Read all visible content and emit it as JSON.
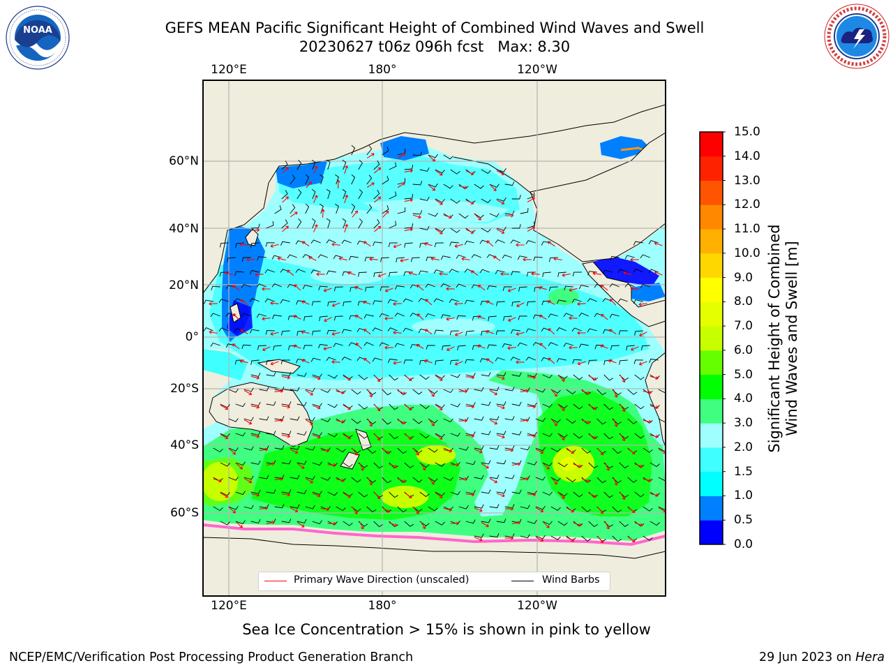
{
  "header": {
    "title_line1": "GEFS MEAN Pacific Significant Height of Combined Wind Waves and Swell",
    "title_line2": "20230627 t06z 096h fcst   Max: 8.30"
  },
  "logos": {
    "left": {
      "text": "NOAA",
      "ring_text": "NATIONAL OCEANIC AND ATMOSPHERIC ADMINISTRATION · U.S. DEPARTMENT OF COMMERCE"
    },
    "right": {
      "ring_text": "NATIONAL WEATHER SERVICE"
    }
  },
  "map": {
    "top_lon_labels": [
      "120°E",
      "180°",
      "120°W"
    ],
    "bottom_lon_labels": [
      "120°E",
      "180°",
      "120°W"
    ],
    "lat_labels": [
      "60°N",
      "40°N",
      "20°N",
      "0°",
      "20°S",
      "40°S",
      "60°S"
    ],
    "colors": {
      "land": "#efeddd",
      "coast": "#000000",
      "grid": "#b4b4b4"
    }
  },
  "legend": {
    "wave_label": "Primary Wave Direction (unscaled)",
    "wave_color": "#ff0000",
    "barb_label": "Wind Barbs",
    "barb_color": "#000000"
  },
  "colorbar": {
    "title_line1": "Significant Height of Combined",
    "title_line2": "Wind Waves and Swell [m]",
    "ticks": [
      "15.0",
      "14.0",
      "13.0",
      "12.0",
      "11.0",
      "10.0",
      "9.0",
      "8.0",
      "7.0",
      "6.0",
      "5.0",
      "4.0",
      "3.0",
      "2.0",
      "1.5",
      "1.0",
      "0.5",
      "0.0"
    ],
    "colors_bottom_to_top": [
      "#0000ff",
      "#0080ff",
      "#00ffff",
      "#40ffff",
      "#9fffff",
      "#40ff80",
      "#00ff00",
      "#66ff00",
      "#c8ff00",
      "#e6ff00",
      "#ffff00",
      "#ffd700",
      "#ffb000",
      "#ff8800",
      "#ff5500",
      "#ff2200",
      "#ff0000"
    ]
  },
  "footer": {
    "ice_note": "Sea Ice Concentration > 15% is shown in pink to yellow",
    "left": "NCEP/EMC/Verification Post Processing Product Generation Branch",
    "right_prefix": "29 Jun 2023 on ",
    "right_host": "Hera"
  }
}
